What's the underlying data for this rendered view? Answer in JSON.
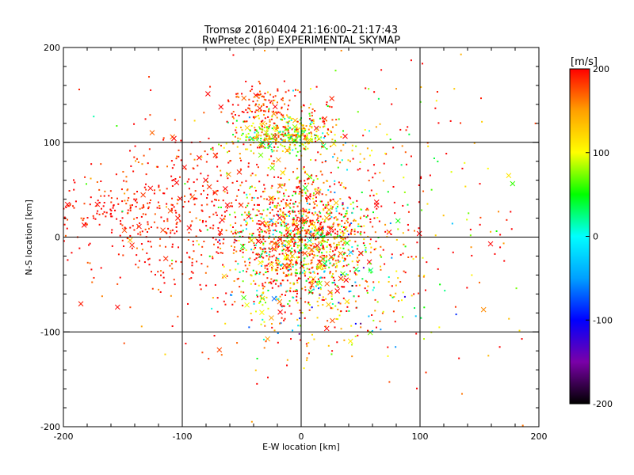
{
  "chart_data": {
    "type": "scatter",
    "title": "Tromsø 20160404 21:16:00–21:17:43",
    "subtitle": "RwPretec (8p) EXPERIMENTAL SKYMAP",
    "xlabel": "E-W location [km]",
    "ylabel": "N-S location [km]",
    "xlim": [
      -200,
      200
    ],
    "ylim": [
      -200,
      200
    ],
    "xticks": [
      "-200",
      "-100",
      "0",
      "100",
      "200"
    ],
    "yticks": [
      "-200",
      "-100",
      "0",
      "100",
      "200"
    ],
    "grid": true,
    "colorbar": {
      "unit": "[m/s]",
      "min": -200,
      "max": 200,
      "ticks": [
        "200",
        "100",
        "0",
        "-100",
        "-200"
      ],
      "colors": [
        "#000000",
        "#7a00a8",
        "#0000ff",
        "#00a0ff",
        "#00ffff",
        "#00ff00",
        "#ffff00",
        "#ffa000",
        "#ff0000"
      ]
    },
    "clusters": [
      {
        "cx": 5,
        "cy": 0,
        "sx": 28,
        "sy": 30,
        "n": 1100,
        "vmean": 150,
        "vsd": 90
      },
      {
        "cx": -15,
        "cy": 108,
        "sx": 22,
        "sy": 10,
        "n": 420,
        "vmean": 110,
        "vsd": 60
      },
      {
        "cx": -30,
        "cy": 140,
        "sx": 20,
        "sy": 12,
        "n": 120,
        "vmean": 190,
        "vsd": 30
      },
      {
        "cx": -90,
        "cy": 20,
        "sx": 55,
        "sy": 50,
        "n": 520,
        "vmean": 195,
        "vsd": 20
      },
      {
        "cx": -160,
        "cy": 28,
        "sx": 22,
        "sy": 14,
        "n": 90,
        "vmean": 195,
        "vsd": 15
      },
      {
        "cx": 20,
        "cy": -60,
        "sx": 45,
        "sy": 30,
        "n": 300,
        "vmean": 120,
        "vsd": 110
      },
      {
        "cx": 60,
        "cy": 60,
        "sx": 60,
        "sy": 60,
        "n": 180,
        "vmean": 160,
        "vsd": 80
      },
      {
        "cx": 0,
        "cy": 0,
        "sx": 110,
        "sy": 110,
        "n": 220,
        "vmean": 170,
        "vsd": 70
      }
    ]
  }
}
